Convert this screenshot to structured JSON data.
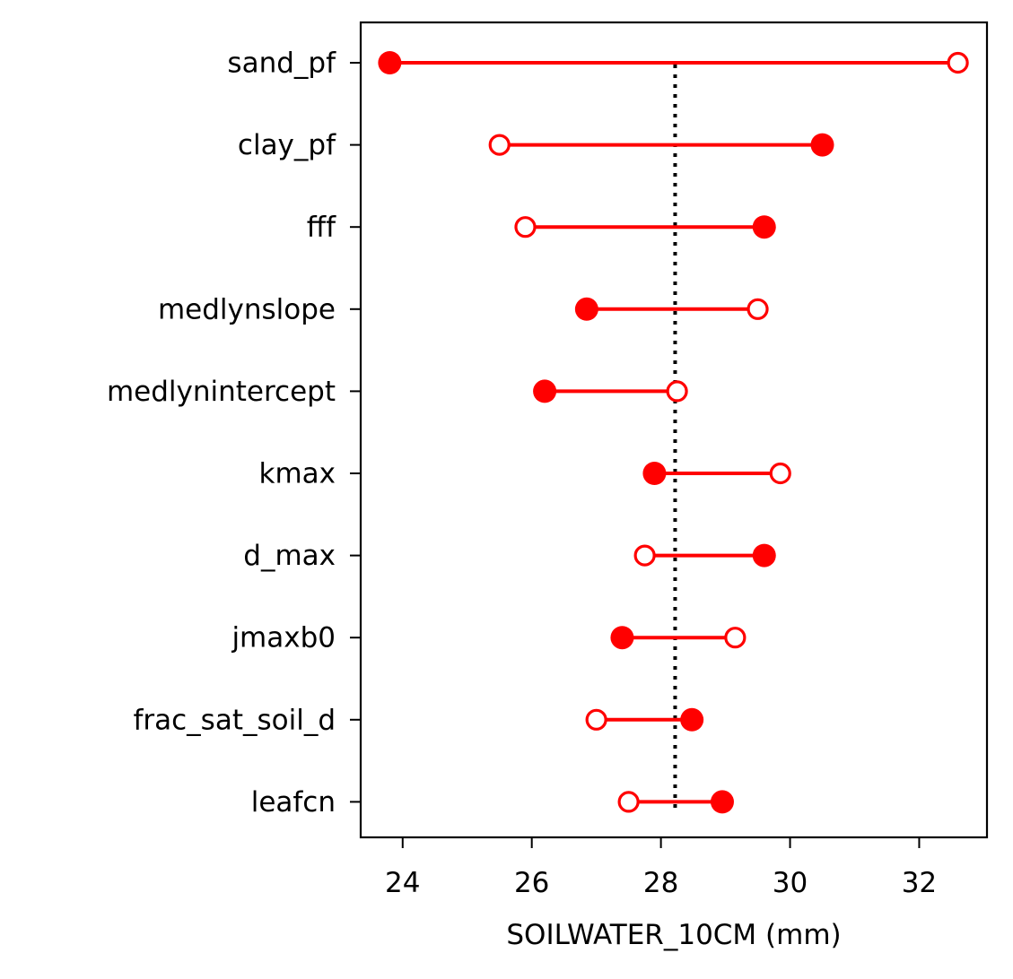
{
  "chart_data": {
    "type": "dumbbell",
    "xlabel": "SOILWATER_10CM (mm)",
    "xlim": [
      23.35,
      33.05
    ],
    "xticks": [
      24,
      26,
      28,
      30,
      32
    ],
    "reference_line": 28.22,
    "categories": [
      "sand_pf",
      "clay_pf",
      "fff",
      "medlynslope",
      "medlynintercept",
      "kmax",
      "d_max",
      "jmaxb0",
      "frac_sat_soil_d",
      "leafcn"
    ],
    "series": [
      {
        "marker": "filled",
        "values": [
          23.8,
          30.5,
          29.6,
          26.85,
          26.2,
          27.9,
          29.6,
          27.4,
          28.48,
          28.95
        ]
      },
      {
        "marker": "open",
        "values": [
          32.6,
          25.5,
          25.9,
          29.5,
          28.25,
          29.85,
          27.75,
          29.15,
          27.0,
          27.5
        ]
      }
    ],
    "colors": {
      "series": "#ff0000",
      "reference": "#000000",
      "axes": "#000000"
    }
  }
}
